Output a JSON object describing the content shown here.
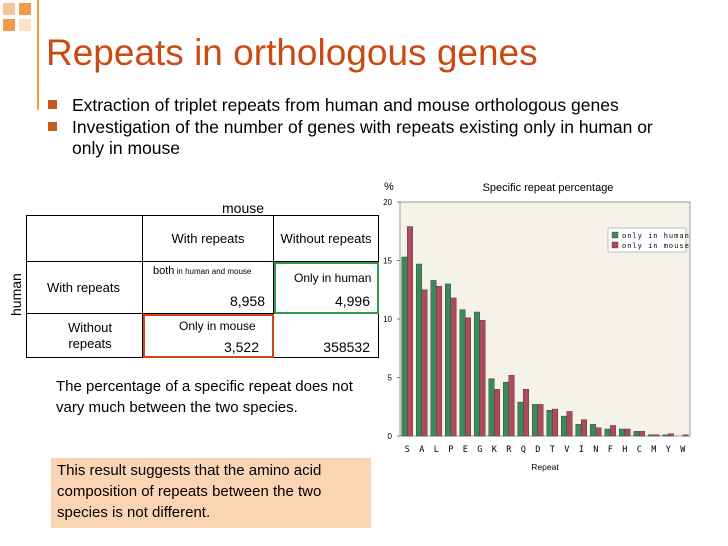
{
  "slide": {
    "title": "Repeats in orthologous genes",
    "bullets": [
      "Extraction of triplet repeats from human and mouse orthologous genes",
      "Investigation of the number of genes with repeats existing only in human or only in mouse"
    ],
    "colors": {
      "title": "#cc4a12",
      "bullet": "#c35a16",
      "accent_line": "#f0a030",
      "conclusion_bg": "#fbd4b4"
    }
  },
  "table": {
    "col_header_axis": "mouse",
    "row_header_axis": "human",
    "col_headers": [
      "With repeats",
      "Without repeats"
    ],
    "row_headers": [
      "With repeats",
      "Without repeats"
    ],
    "cells": {
      "r1c1": {
        "label_main": "both",
        "label_small": " in human and mouse",
        "value": "8,958"
      },
      "r1c2": {
        "label": "Only in human",
        "value": "4,996"
      },
      "r2c1": {
        "label": "Only in mouse",
        "value": "3,522"
      },
      "r2c2": {
        "value": "358532"
      }
    },
    "highlight_colors": {
      "only_human": "#2e9a4a",
      "only_mouse": "#cc4a12"
    }
  },
  "note": "The percentage of a specific repeat does not vary much between the two species.",
  "conclusion": "This result suggests that the amino acid composition of repeats between the two species is not different.",
  "chart_data": {
    "type": "bar",
    "title": "Specific repeat percentage",
    "ylabel": "%",
    "xlabel": "Repeat",
    "ylim": [
      0,
      20
    ],
    "yticks": [
      0,
      5,
      10,
      15,
      20
    ],
    "categories": [
      "S",
      "A",
      "L",
      "P",
      "E",
      "G",
      "K",
      "R",
      "Q",
      "D",
      "T",
      "V",
      "I",
      "N",
      "F",
      "H",
      "C",
      "M",
      "Y",
      "W"
    ],
    "series": [
      {
        "name": "only in human",
        "color": "#3a8a5a",
        "values": [
          15.3,
          14.7,
          13.3,
          13.0,
          10.8,
          10.6,
          4.9,
          4.6,
          2.9,
          2.7,
          2.2,
          1.7,
          1.0,
          1.0,
          0.6,
          0.6,
          0.4,
          0.1,
          0.1,
          0.0
        ]
      },
      {
        "name": "only in mouse",
        "color": "#b04a5a",
        "values": [
          17.9,
          12.5,
          12.8,
          11.8,
          10.1,
          9.9,
          4.0,
          5.2,
          4.0,
          2.7,
          2.3,
          2.1,
          1.4,
          0.7,
          0.9,
          0.6,
          0.4,
          0.1,
          0.2,
          0.1
        ]
      }
    ],
    "legend_position": "top-right",
    "plot_bg": "#f5f2e9",
    "grid": false
  }
}
